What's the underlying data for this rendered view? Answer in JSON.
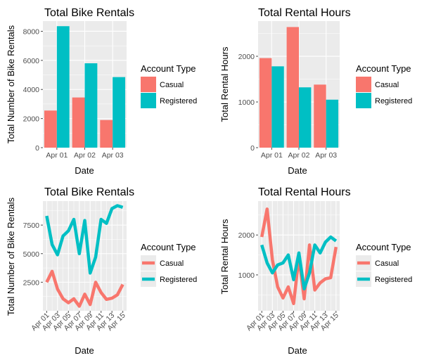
{
  "colors": {
    "casual": "#F8766D",
    "registered": "#00BFC4",
    "panel": "#EBEBEB",
    "grid": "#FFFFFF",
    "tick": "#4D4D4D"
  },
  "chart_data": [
    {
      "type": "bar",
      "title": "Total Bike Rentals",
      "xlabel": "Date",
      "ylabel": "Total Number of Bike Rentals",
      "categories": [
        "Apr 01",
        "Apr 02",
        "Apr 03"
      ],
      "series": [
        {
          "name": "Casual",
          "values": [
            2550,
            3450,
            1900
          ]
        },
        {
          "name": "Registered",
          "values": [
            8350,
            5800,
            4850
          ]
        }
      ],
      "ylim": [
        0,
        8700
      ],
      "yticks": [
        0,
        2000,
        4000,
        6000,
        8000
      ],
      "legend": {
        "title": "Account Type",
        "position": "right"
      },
      "grid": true
    },
    {
      "type": "bar",
      "title": "Total Rental Hours",
      "xlabel": "Date",
      "ylabel": "Total Rental Hours",
      "categories": [
        "Apr 01",
        "Apr 02",
        "Apr 03"
      ],
      "series": [
        {
          "name": "Casual",
          "values": [
            1960,
            2640,
            1380
          ]
        },
        {
          "name": "Registered",
          "values": [
            1780,
            1320,
            1050
          ]
        }
      ],
      "ylim": [
        0,
        2770
      ],
      "yticks": [
        0,
        1000,
        2000
      ],
      "legend": {
        "title": "Account Type",
        "position": "right"
      },
      "grid": true
    },
    {
      "type": "line",
      "title": "Total Bike Rentals",
      "xlabel": "Date",
      "ylabel": "Total Number of Bike Rentals",
      "categories": [
        "Apr 01",
        "Apr 02",
        "Apr 03",
        "Apr 04",
        "Apr 05",
        "Apr 06",
        "Apr 07",
        "Apr 08",
        "Apr 09",
        "Apr 10",
        "Apr 11",
        "Apr 12",
        "Apr 13",
        "Apr 14",
        "Apr 15"
      ],
      "xticks": [
        "Apr 01",
        "Apr 03",
        "Apr 05",
        "Apr 07",
        "Apr 09",
        "Apr 11",
        "Apr 13",
        "Apr 15"
      ],
      "series": [
        {
          "name": "Casual",
          "values": [
            2500,
            3450,
            1900,
            1050,
            700,
            1050,
            400,
            1450,
            550,
            2500,
            1600,
            1000,
            1100,
            1400,
            2300
          ]
        },
        {
          "name": "Registered",
          "values": [
            8300,
            5800,
            4900,
            6550,
            7000,
            8000,
            5000,
            7900,
            3300,
            4700,
            8000,
            7650,
            8950,
            9200,
            9050
          ]
        }
      ],
      "ylim": [
        0,
        9600
      ],
      "yticks": [
        2500,
        5000,
        7500
      ],
      "legend": {
        "title": "Account Type",
        "position": "right"
      },
      "grid": true
    },
    {
      "type": "line",
      "title": "Total Rental Hours",
      "xlabel": "Date",
      "ylabel": "Total Rental Hours",
      "categories": [
        "Apr 01",
        "Apr 02",
        "Apr 03",
        "Apr 04",
        "Apr 05",
        "Apr 06",
        "Apr 07",
        "Apr 08",
        "Apr 09",
        "Apr 10",
        "Apr 11",
        "Apr 12",
        "Apr 13",
        "Apr 14",
        "Apr 15"
      ],
      "xticks": [
        "Apr 01",
        "Apr 03",
        "Apr 05",
        "Apr 07",
        "Apr 09",
        "Apr 11",
        "Apr 13",
        "Apr 15"
      ],
      "series": [
        {
          "name": "Casual",
          "values": [
            1950,
            2650,
            1380,
            700,
            420,
            700,
            280,
            1450,
            400,
            1750,
            620,
            800,
            900,
            930,
            1700
          ]
        },
        {
          "name": "Registered",
          "values": [
            1750,
            1300,
            1050,
            1250,
            1300,
            1500,
            880,
            1550,
            650,
            1050,
            1750,
            1550,
            1820,
            1950,
            1850
          ]
        }
      ],
      "ylim": [
        100,
        2850
      ],
      "yticks": [
        1000,
        2000
      ],
      "legend": {
        "title": "Account Type",
        "position": "right"
      },
      "grid": true
    }
  ]
}
